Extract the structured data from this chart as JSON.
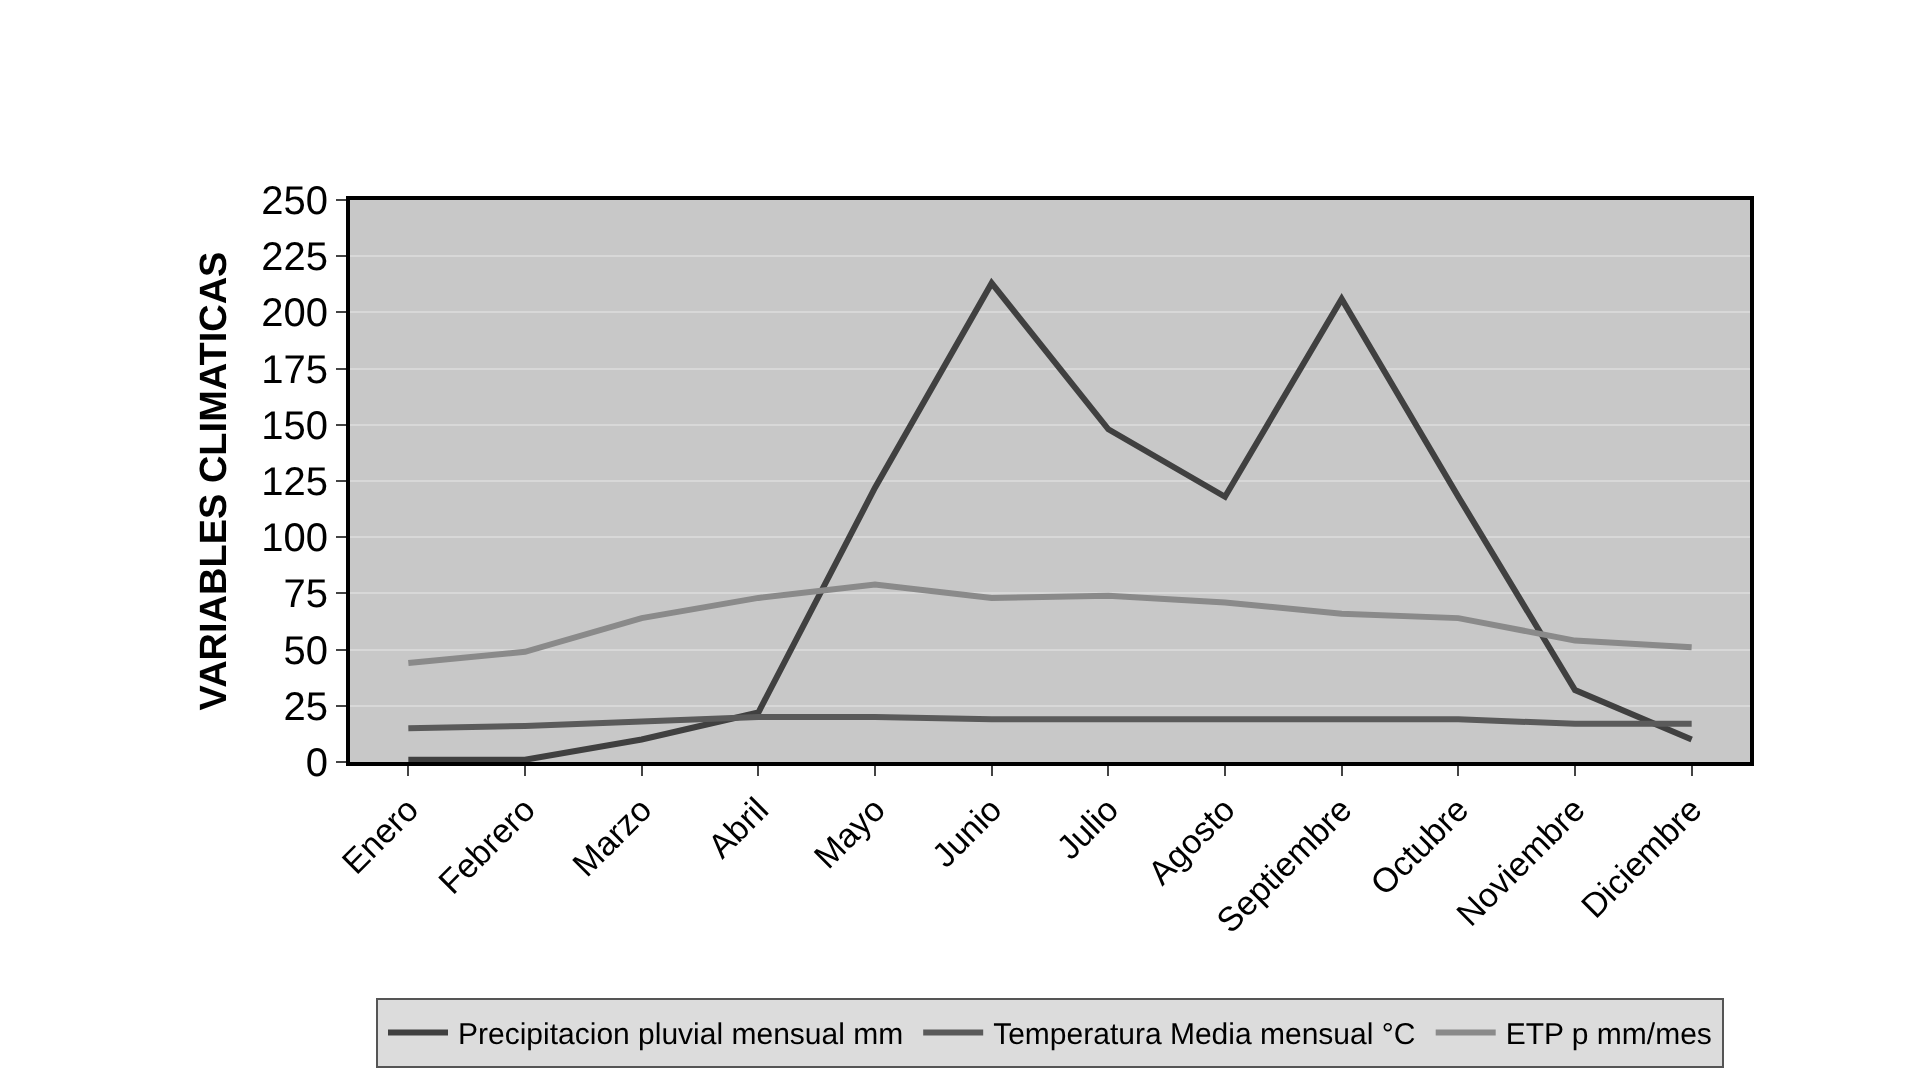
{
  "chart_data": {
    "type": "line",
    "ylabel": "VARIABLES CLIMATICAS",
    "categories": [
      "Enero",
      "Febrero",
      "Marzo",
      "Abril",
      "Mayo",
      "Junio",
      "Julio",
      "Agosto",
      "Septiembre",
      "Octubre",
      "Noviembre",
      "Diciembre"
    ],
    "series": [
      {
        "name": "Precipitacion pluvial mensual mm",
        "color": "#404040",
        "values": [
          1,
          1,
          10,
          22,
          122,
          213,
          148,
          118,
          206,
          118,
          32,
          10
        ]
      },
      {
        "name": "Temperatura Media mensual °C",
        "color": "#5a5a5a",
        "values": [
          15,
          16,
          18,
          20,
          20,
          19,
          19,
          19,
          19,
          19,
          17,
          17
        ]
      },
      {
        "name": "ETP p mm/mes",
        "color": "#8a8a8a",
        "values": [
          44,
          49,
          64,
          73,
          79,
          73,
          74,
          71,
          66,
          64,
          54,
          51
        ]
      }
    ],
    "ylim": [
      0,
      250
    ],
    "yticks": [
      0,
      25,
      50,
      75,
      100,
      125,
      150,
      175,
      200,
      225,
      250
    ],
    "grid": "y",
    "legend": "bottom",
    "marker": "none",
    "line_style": "solid"
  }
}
